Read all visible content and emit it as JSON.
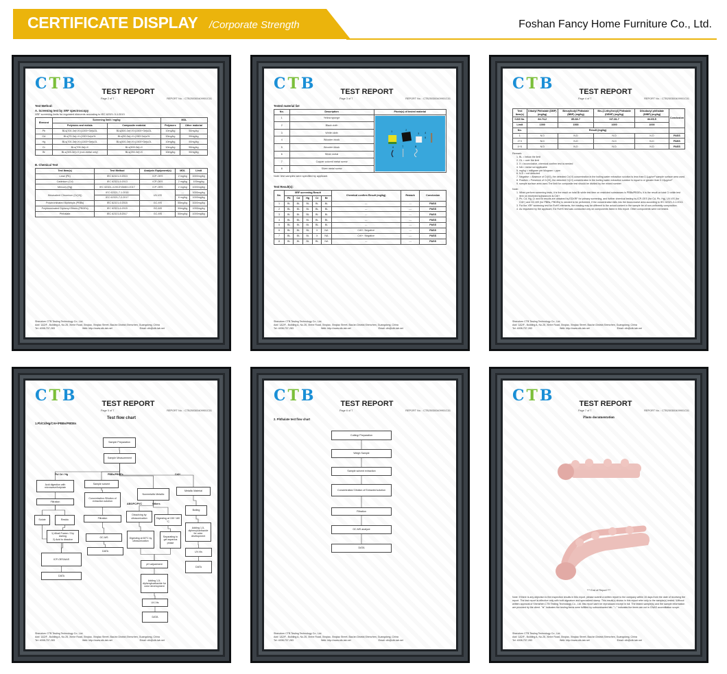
{
  "header": {
    "title": "CERTIFICATE DISPLAY",
    "subtitle": "/Corporate Strength",
    "company": "Foshan Fancy Home Furniture Co., Ltd."
  },
  "colors": {
    "accent": "#EBB40C",
    "ctb_blue": "#1a8fd6",
    "ctb_green": "#7bbf3a",
    "frame": "#1e2226",
    "photo_bg": "#38a7dc",
    "sofa_pink": "#eab8b3"
  },
  "report": {
    "logo": "CTB",
    "title": "TEST REPORT",
    "report_no": "REPORT No. : CTB250300409901C01",
    "footer": {
      "company": "Shenzhen CTB Testing Technology Co., Ltd.",
      "address": "Add: 1&2/F., Building A, No.26, Xinhe Road, Xinqiao, Xinqiao Street, Bao'an District,Shenzhen, Guangdong, China",
      "tel": "Tel: 4008-707-283",
      "web": "Web: http://www.ctb-lab.net",
      "email": "Email: ctb@ctb-lab.net"
    }
  },
  "pages": [
    {
      "page_label": "Page 2 of 7",
      "method_heading": "Test Method:",
      "section_a": "A. Screening test by XRF spectroscopy",
      "section_a_note": "XRF screening limits for regulated elements according to IEC 62321-3-1:2013",
      "xrf_headers": [
        "Element",
        "Screening limit / mg/kg",
        "MDL",
        "Polymers and metals",
        "Composite material",
        "Polymers",
        "Other material"
      ],
      "xrf_rows": [
        [
          "Pb",
          "BL≤(700-3σ)<X<(1300+3σ)≤OL",
          "BL≤(500-3σ)<X<(1500+3σ)≤OL",
          "10mg/kg",
          "50mg/kg"
        ],
        [
          "Cd",
          "BL≤(70-3σ)<X<(130+3σ)≤OL",
          "BL≤(50-3σ)<X<(150+3σ)≤OL",
          "10mg/kg",
          "50mg/kg"
        ],
        [
          "Hg",
          "BL≤(700-3σ)<X<(1300+3σ)≤OL",
          "BL≤(500-3σ)<X<(1500+3σ)≤OL",
          "10mg/kg",
          "50mg/kg"
        ],
        [
          "Cr",
          "BL≤(700-3σ)<X",
          "BL≤(500-3σ)<X",
          "10mg/kg",
          "50mg/kg"
        ],
        [
          "Br",
          "BL≤(300-3σ)<X (non-metal only)",
          "BL≤(250-3σ)<X",
          "10mg/kg",
          "50mg/kg"
        ]
      ],
      "section_b": "B. Chemical Test",
      "chem_headers": [
        "Test Item(s)",
        "Test Method",
        "Analysis Equipment(s)",
        "MDL",
        "Limit"
      ],
      "chem_rows": [
        [
          "Lead (Pb)",
          "IEC 62321-5:2013",
          "ICP-OES",
          "2 mg/kg",
          "1000mg/kg"
        ],
        [
          "Cadmium (Cd)",
          "IEC 62321-5:2013",
          "ICP-OES",
          "2 mg/kg",
          "100mg/kg"
        ],
        [
          "Mercury (Hg)",
          "IEC 62321-4:2013+AMD1:2017",
          "ICP-OES",
          "2 mg/kg",
          "1000mg/kg"
        ],
        [
          "Hexavalent Chromium (Cr(VI))",
          "IEC 62321-7-1:2015",
          "UV-VIS",
          "---",
          "1000mg/kg"
        ],
        [
          null,
          "IEC 62321-7-2:2017",
          null,
          "8 mg/kg",
          "1000mg/kg"
        ],
        [
          "Polybrominated Biphenyls (PBBs)",
          "IEC 62321-6:2015",
          "GC-MS",
          "50mg/kg",
          "1000mg/kg"
        ],
        [
          "Polybrominated Diphenyl Ethers (PBDEs)",
          "IEC 62321-6:2015",
          "GC-MS",
          "50mg/kg",
          "1000mg/kg"
        ],
        [
          "Phthalate",
          "IEC 62321-8:2017",
          "GC-MS",
          "50mg/kg",
          "1000mg/kg"
        ]
      ]
    },
    {
      "page_label": "Page 3 of 7",
      "material_heading": "Tested material list",
      "material_headers": [
        "No.",
        "Description",
        "Photo(s) of tested material"
      ],
      "material_rows": [
        [
          "1",
          "Yellow sponge"
        ],
        [
          "2",
          "Black cloth"
        ],
        [
          "3",
          "White cloth"
        ],
        [
          "4",
          "Wooden block"
        ],
        [
          "5",
          "Wooden block"
        ],
        [
          "6",
          "Silver metal"
        ],
        [
          "7",
          "Copper colored metal screw"
        ],
        [
          "8",
          "Silver metal screw"
        ]
      ],
      "photo_numbers": [
        "1",
        "2",
        "3",
        "4",
        "5",
        "6",
        "7",
        "8"
      ],
      "material_note": "Note: test samples were specified by applicant.",
      "result_heading": "Test Result(s):",
      "result_headers": [
        "No.",
        "XRF screening Result",
        "Chemical confirm Result (mg/kg)",
        "Remark",
        "Conclusion",
        "Pb",
        "Cd",
        "Hg",
        "Cr",
        "Br"
      ],
      "result_rows": [
        [
          "1",
          "BL",
          "BL",
          "BL",
          "BL",
          "BL",
          "---",
          "---",
          "PASS"
        ],
        [
          "2",
          "BL",
          "BL",
          "BL",
          "BL",
          "BL",
          "---",
          "---",
          "PASS"
        ],
        [
          "3",
          "BL",
          "BL",
          "BL",
          "BL",
          "BL",
          "---",
          "---",
          "PASS"
        ],
        [
          "4",
          "BL",
          "BL",
          "BL",
          "BL",
          "BL",
          "---",
          "---",
          "PASS"
        ],
        [
          "5",
          "BL",
          "BL",
          "BL",
          "BL",
          "BL",
          "---",
          "---",
          "PASS"
        ],
        [
          "6",
          "BL",
          "BL",
          "BL",
          "X",
          "NA",
          "Cr6+: Negative",
          "---",
          "PASS"
        ],
        [
          "7",
          "BL",
          "BL",
          "BL",
          "X",
          "NA",
          "Cr6+: Negative",
          "---",
          "PASS"
        ],
        [
          "8",
          "BL",
          "BL",
          "BL",
          "BL",
          "NA",
          "---",
          "---",
          "PASS"
        ]
      ]
    },
    {
      "page_label": "Page 4 of 7",
      "phthalate_headers": [
        "Test Item(s)",
        "Dibutyl Phthalate (DBP) (mg/kg)",
        "Benzylbutyl Phthalate (BBP) (mg/kg)",
        "Bis-(2-ethylhexyl) Phthalate (DEHP) (mg/kg)",
        "Diisobutyl phthalate (DIBP) (mg/kg)",
        "Conclusion"
      ],
      "cas_row": [
        "CAS No.",
        "84-74-2",
        "85-68-7",
        "117-81-7",
        "84-69-5"
      ],
      "limit_row": [
        "Limit",
        "1000",
        "1000",
        "1000",
        "1000"
      ],
      "no_label": "No.",
      "result_label": "Result (mg/kg)",
      "phthalate_rows": [
        [
          "1",
          "N.D",
          "N.D",
          "N.D",
          "N.D",
          "PASS"
        ],
        [
          "2+3",
          "N.D",
          "N.D",
          "N.D",
          "N.D",
          "PASS"
        ],
        [
          "4~5",
          "N.D",
          "N.D",
          "N.D",
          "N.D",
          "PASS"
        ]
      ],
      "remark_heading": "Remark:",
      "remarks": [
        "BL = below the limit",
        "OL = over the limit",
        "X = inconclusive, chemical confirm test is needed",
        "NA = metal not applicable",
        "mg/kg = milligram per kilogram = ppm",
        "N.D = not detected",
        "Negative = Absence of Cr(VI), the detected Cr(VI) concentration in the boiling water extraction solution is less than 0.1μg/cm² sample surface area used.",
        "Positive = Presence of Cr(VI), the detected Cr(VI) concentration in the boiling water extraction solution is equal to or greater than 0.13μg/cm²",
        "sample surface area used.The limit for composite test should be divided by the mixed number"
      ],
      "note_heading": "Note:",
      "notes": [
        "When perform screening tests, it is the result on total Br while test item on restricted substances is PBBs/PBDEs, it is the result on total Cr while test item on restricted substances is Cr6+.",
        "Pb, Cd, Hg, Cr and Br results are obtained by EDXRF for primary screening, and further chemical testing by ICP-OES (for Cd, Pb, Hg), UV-VIS (for Cr6+) and GC-MS (for PBBs, PBDEs) is needed to be performed, if the concentration falls into the inconclusive area according to IEC 62321-3-1:2013.",
        "For the XRF screening test for RoHS elements, the reading may be different to the actual content in the sample be of non-uniformity composition.",
        "As requested by the applicant, EU RoHS test was conducted only on components listed in this report. Other components were not tested."
      ]
    },
    {
      "page_label": "Page 5 of 7",
      "chart_title": "Test flow chart",
      "chart_subtitle": "1.Pb/Cd/Hg/Cr6+/PBBs/PBDEs",
      "branch_labels": [
        "Pb/ Cd / Hg",
        "PBBs/PBDEs",
        "Cr6+",
        "ABS/PC/PVC",
        "Others"
      ],
      "boxes": [
        "Sample Preparation",
        "Sample Measurement",
        "Acid digestion with microwave/hotplate",
        "Sample   solvent",
        "Nonmetallic Metallic",
        "Metallic Material",
        "Filtration",
        "Concentration /Dilution of extraction solution",
        "Solute",
        "Residu",
        "1) Alkali Fusion / Dry Ashing\n2) Acid to dissolve",
        "ICP-OES/AAS",
        "DATA",
        "Filtration",
        "GC-MS",
        "DATA",
        "Dissolving by ultrasonication",
        "Digesting at 150~180 °C",
        "Digesting at 60°C by ultrasonication",
        "Separating to get aqueous phase",
        "pH adjustment",
        "Adding 1,5-diphenylcarbazide for color development",
        "UV-Vis",
        "DATA",
        "Boiling",
        "Adding 1,5-diphenylcarbazide for color development",
        "UV-Vis",
        "DATA"
      ]
    },
    {
      "page_label": "Page 6 of 7",
      "chart_subtitle": "2. Phthalate test flow chart",
      "boxes": [
        "Cutting/ Preparation",
        "Weigh Sample",
        "Sample solvent extraction",
        "Concentration/ Dilution of Extracted solution",
        "Filtration",
        "GC-MS analyze",
        "DATA"
      ]
    },
    {
      "page_label": "Page 7 of 7",
      "photo_heading": "Photo documentation",
      "end_label": "*** End of Report ***",
      "end_note": "Note: If there is any objection to the inspection results in this report, please submit a written report to the company within 15 days from the date of receiving the report. The test report is effective only with both signature and specialized stamp. This result(s) shown in this report refer only to the sample(s) tested. Without written approval of Shenzhen CTB Testing Technology Co., Ltd. this report can't be reproduced except in full. The tested sample(s) and the sample information are provided by the client. \"★\" indicates the testing items were fulfilled by subcontracted lab. \"☆\" indicates the items are not in CNAS accreditation scope."
    }
  ]
}
